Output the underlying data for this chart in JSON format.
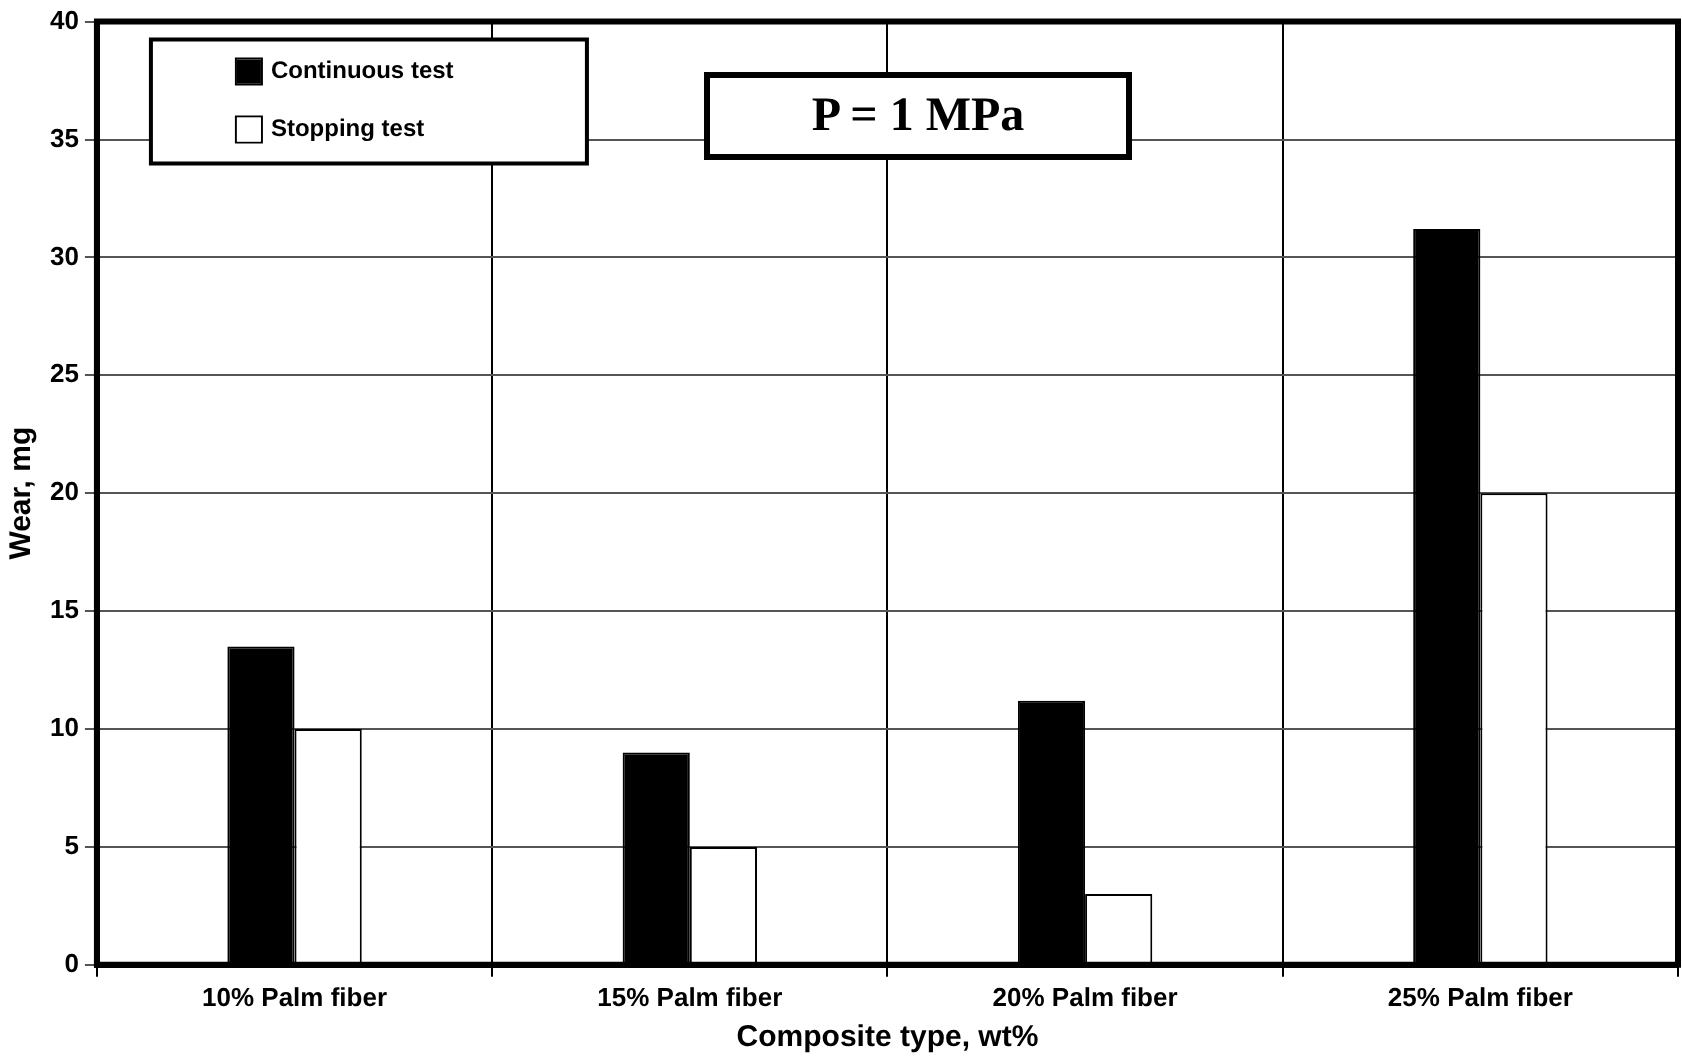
{
  "chart_data": {
    "type": "bar",
    "xlabel": "Composite type, wt%",
    "ylabel": "Wear, mg",
    "categories": [
      "10% Palm fiber",
      "15% Palm fiber",
      "20% Palm fiber",
      "25% Palm fiber"
    ],
    "series": [
      {
        "name": "Continuous test",
        "color": "#000000",
        "values": [
          13.5,
          9,
          11.2,
          31.2
        ]
      },
      {
        "name": "Stopping test",
        "color": "#ffffff",
        "values": [
          10,
          5,
          3,
          20
        ]
      }
    ],
    "ylim": [
      0,
      40
    ],
    "yticks": [
      0,
      5,
      10,
      15,
      20,
      25,
      30,
      35,
      40
    ],
    "grid": true,
    "legend": "top left",
    "annotations": [
      "P = 1 MPa"
    ]
  }
}
